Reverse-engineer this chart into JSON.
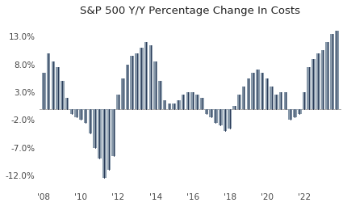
{
  "title": "S&P 500 Y/Y Percentage Change In Costs",
  "yticks": [
    -0.12,
    -0.07,
    -0.02,
    0.03,
    0.08,
    0.13
  ],
  "ytick_labels": [
    "-12.0%",
    "-7.0%",
    "-2.0%",
    "3.0%",
    "8.0%",
    "13.0%"
  ],
  "xtick_positions": [
    0,
    8,
    16,
    24,
    32,
    40,
    48,
    56
  ],
  "xtick_labels": [
    "'08",
    "'10",
    "'12",
    "'14",
    "'16",
    "'18",
    "'20",
    "'22"
  ],
  "ylim": [
    -0.145,
    0.155
  ],
  "bar_color": "#8899aa",
  "line_color": "#1a2a4a",
  "values": [
    0.065,
    0.1,
    0.085,
    0.075,
    0.05,
    0.02,
    -0.01,
    -0.015,
    -0.02,
    -0.025,
    -0.045,
    -0.07,
    -0.09,
    -0.125,
    -0.11,
    -0.085,
    0.025,
    0.055,
    0.08,
    0.095,
    0.1,
    0.11,
    0.12,
    0.115,
    0.085,
    0.05,
    0.015,
    0.01,
    0.01,
    0.015,
    0.025,
    0.03,
    0.03,
    0.025,
    0.02,
    -0.01,
    -0.015,
    -0.025,
    -0.03,
    -0.04,
    -0.035,
    0.005,
    0.025,
    0.04,
    0.055,
    0.065,
    0.07,
    0.065,
    0.055,
    0.04,
    0.025,
    0.03,
    0.03,
    -0.02,
    -0.015,
    -0.01,
    0.03,
    0.075,
    0.09,
    0.1,
    0.105,
    0.12,
    0.135,
    0.14
  ]
}
